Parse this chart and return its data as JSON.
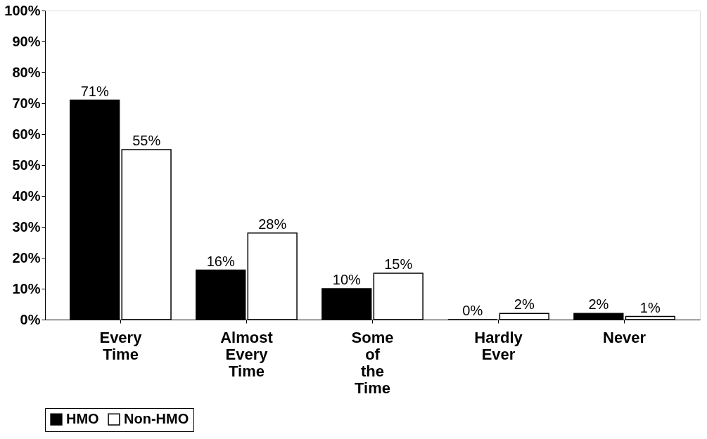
{
  "chart_data": {
    "type": "bar",
    "categories": [
      "Every Time",
      "Almost Every Time",
      "Some of the Time",
      "Hardly Ever",
      "Never"
    ],
    "series": [
      {
        "name": "HMO",
        "color": "#000000",
        "values": [
          71,
          16,
          10,
          0,
          2
        ],
        "value_labels": [
          "71%",
          "16%",
          "10%",
          "0%",
          "2%"
        ]
      },
      {
        "name": "Non-HMO",
        "color": "#ffffff",
        "values": [
          55,
          28,
          15,
          2,
          1
        ],
        "value_labels": [
          "55%",
          "28%",
          "15%",
          "2%",
          "1%"
        ]
      }
    ],
    "ylim": [
      0,
      100
    ],
    "yticks": [
      {
        "value": 0,
        "label": "0%"
      },
      {
        "value": 10,
        "label": "10%"
      },
      {
        "value": 20,
        "label": "20%"
      },
      {
        "value": 30,
        "label": "30%"
      },
      {
        "value": 40,
        "label": "40%"
      },
      {
        "value": 50,
        "label": "50%"
      },
      {
        "value": 60,
        "label": "60%"
      },
      {
        "value": 70,
        "label": "70%"
      },
      {
        "value": 80,
        "label": "80%"
      },
      {
        "value": 90,
        "label": "90%"
      },
      {
        "value": 100,
        "label": "100%"
      }
    ],
    "grid": false,
    "legend": "bottom"
  }
}
